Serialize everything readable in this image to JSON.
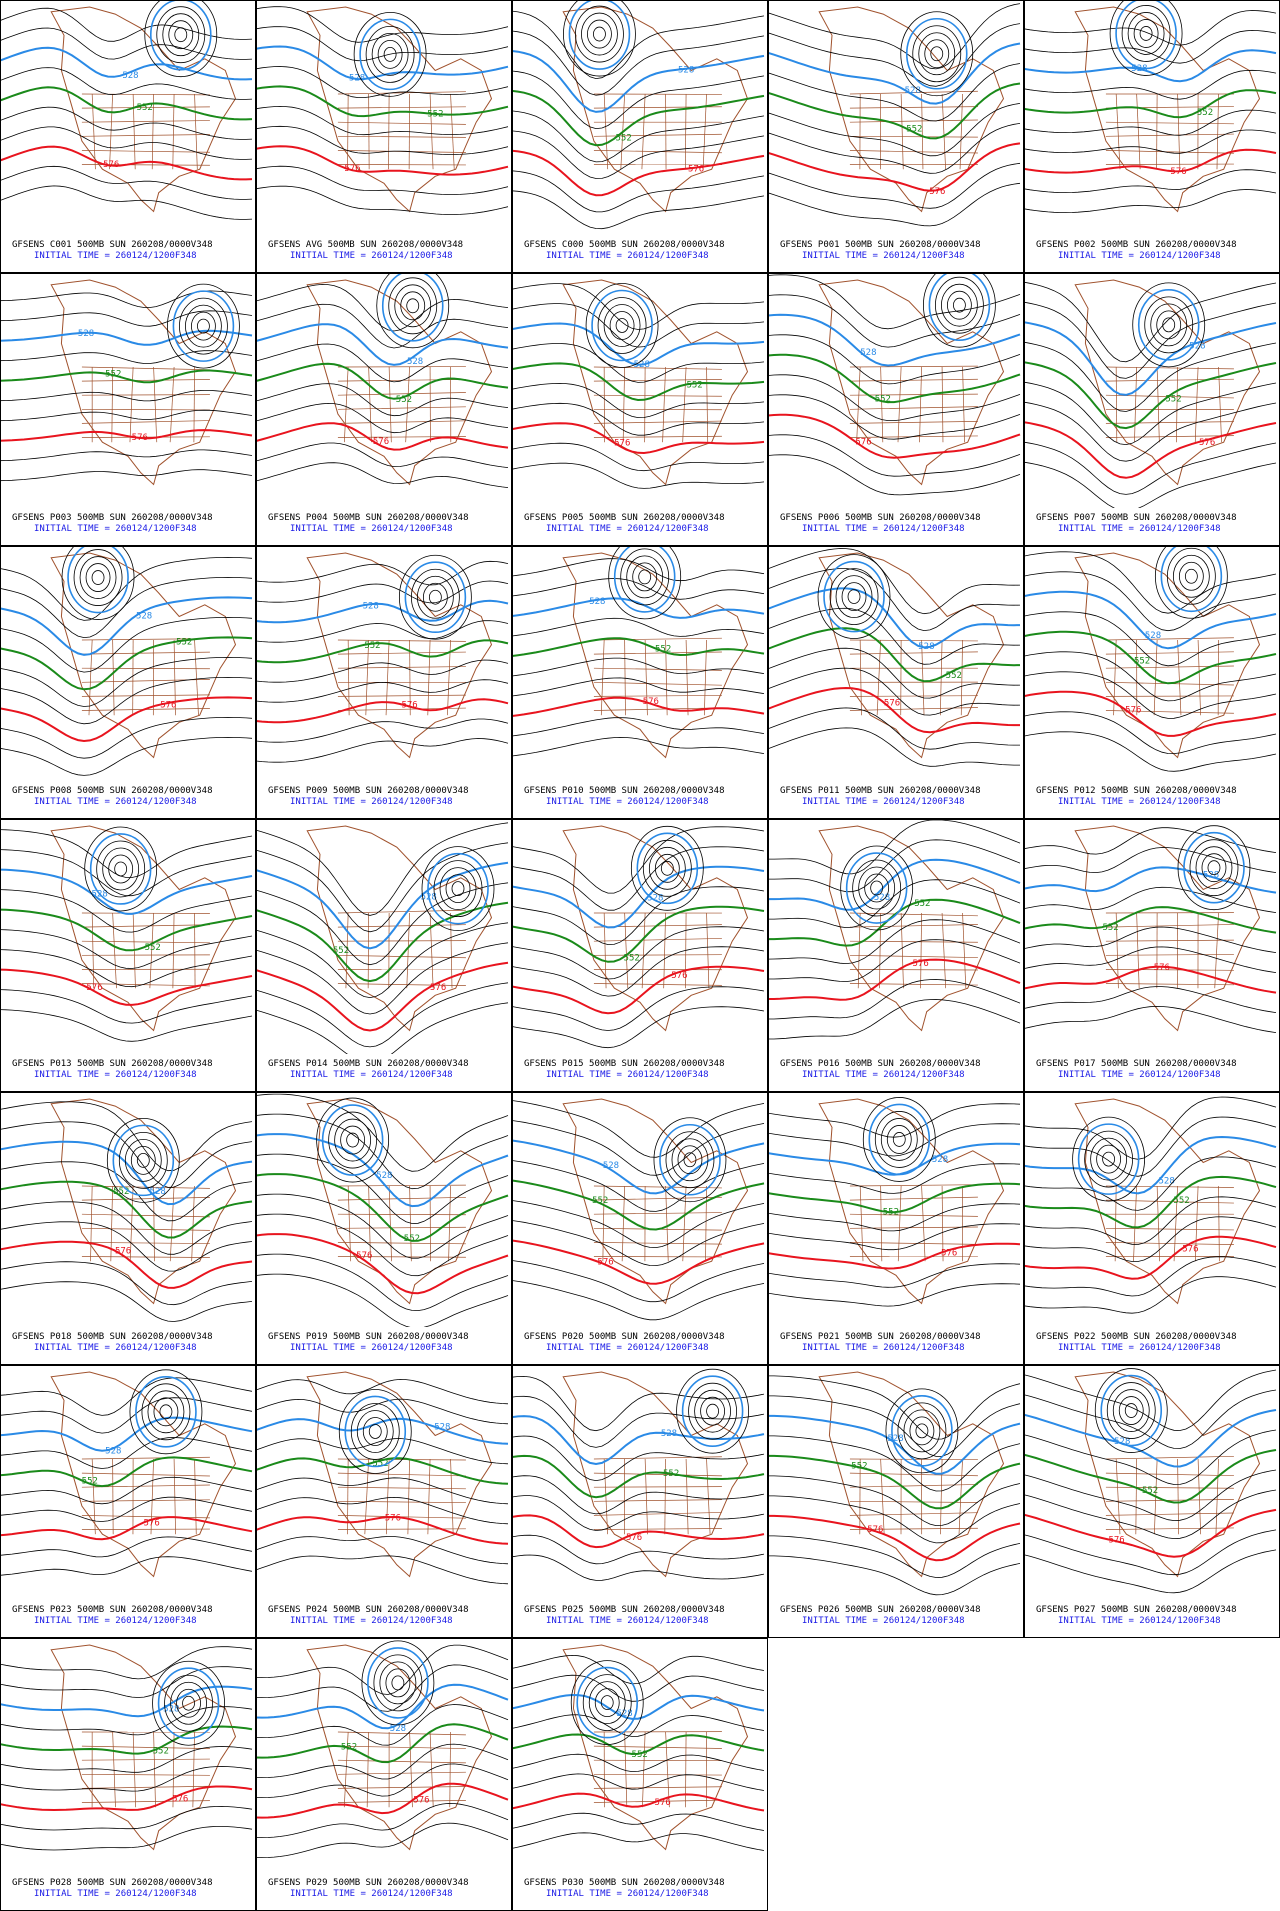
{
  "panels": [
    {
      "title": "GFSENS C001 500MB SUN 260208/0000V348"
    },
    {
      "title": "GFSENS AVG 500MB SUN 260208/0000V348"
    },
    {
      "title": "GFSENS C000 500MB SUN 260208/0000V348"
    },
    {
      "title": "GFSENS P001 500MB SUN 260208/0000V348"
    },
    {
      "title": "GFSENS P002 500MB SUN 260208/0000V348"
    },
    {
      "title": "GFSENS P003 500MB SUN 260208/0000V348"
    },
    {
      "title": "GFSENS P004 500MB SUN 260208/0000V348"
    },
    {
      "title": "GFSENS P005 500MB SUN 260208/0000V348"
    },
    {
      "title": "GFSENS P006 500MB SUN 260208/0000V348"
    },
    {
      "title": "GFSENS P007 500MB SUN 260208/0000V348"
    },
    {
      "title": "GFSENS P008 500MB SUN 260208/0000V348"
    },
    {
      "title": "GFSENS P009 500MB SUN 260208/0000V348"
    },
    {
      "title": "GFSENS P010 500MB SUN 260208/0000V348"
    },
    {
      "title": "GFSENS P011 500MB SUN 260208/0000V348"
    },
    {
      "title": "GFSENS P012 500MB SUN 260208/0000V348"
    },
    {
      "title": "GFSENS P013 500MB SUN 260208/0000V348"
    },
    {
      "title": "GFSENS P014 500MB SUN 260208/0000V348"
    },
    {
      "title": "GFSENS P015 500MB SUN 260208/0000V348"
    },
    {
      "title": "GFSENS P016 500MB SUN 260208/0000V348"
    },
    {
      "title": "GFSENS P017 500MB SUN 260208/0000V348"
    },
    {
      "title": "GFSENS P018 500MB SUN 260208/0000V348"
    },
    {
      "title": "GFSENS P019 500MB SUN 260208/0000V348"
    },
    {
      "title": "GFSENS P020 500MB SUN 260208/0000V348"
    },
    {
      "title": "GFSENS P021 500MB SUN 260208/0000V348"
    },
    {
      "title": "GFSENS P022 500MB SUN 260208/0000V348"
    },
    {
      "title": "GFSENS P023 500MB SUN 260208/0000V348"
    },
    {
      "title": "GFSENS P024 500MB SUN 260208/0000V348"
    },
    {
      "title": "GFSENS P025 500MB SUN 260208/0000V348"
    },
    {
      "title": "GFSENS P026 500MB SUN 260208/0000V348"
    },
    {
      "title": "GFSENS P027 500MB SUN 260208/0000V348"
    },
    {
      "title": "GFSENS P028 500MB SUN 260208/0000V348"
    },
    {
      "title": "GFSENS P029 500MB SUN 260208/0000V348"
    },
    {
      "title": "GFSENS P030 500MB SUN 260208/0000V348"
    }
  ],
  "initial_time": "INITIAL TIME = 260124/1200F348",
  "contour_labels": [
    576,
    552,
    528
  ]
}
